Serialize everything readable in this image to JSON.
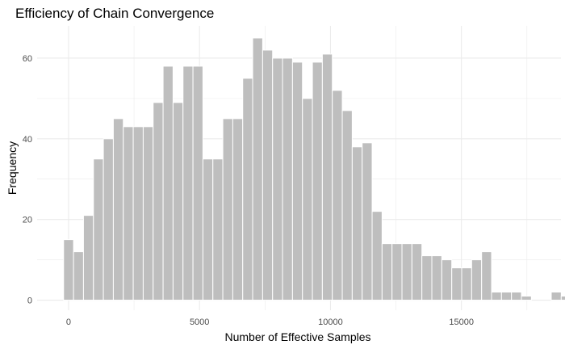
{
  "chart_data": {
    "type": "bar",
    "subtype": "histogram",
    "title": "Efficiency of Chain Convergence",
    "xlabel": "Number of Effective Samples",
    "ylabel": "Frequency",
    "xlim": [
      -1200,
      18800
    ],
    "ylim": [
      -2.5,
      68
    ],
    "x_ticks": [
      0,
      5000,
      10000,
      15000
    ],
    "y_ticks": [
      0,
      20,
      40,
      60
    ],
    "bin_width": 380,
    "bin_centers_start": 0,
    "counts": [
      15,
      12,
      21,
      35,
      40,
      45,
      43,
      43,
      43,
      49,
      58,
      49,
      58,
      58,
      35,
      35,
      45,
      45,
      55,
      65,
      62,
      60,
      60,
      59,
      50,
      59,
      61,
      52,
      47,
      38,
      39,
      22,
      14,
      14,
      14,
      14,
      11,
      11,
      10,
      8,
      8,
      10,
      12,
      2,
      2,
      2,
      1,
      0,
      0,
      2,
      1,
      1
    ],
    "bar_color": "#bebebe",
    "grid": true,
    "legend": "none"
  }
}
